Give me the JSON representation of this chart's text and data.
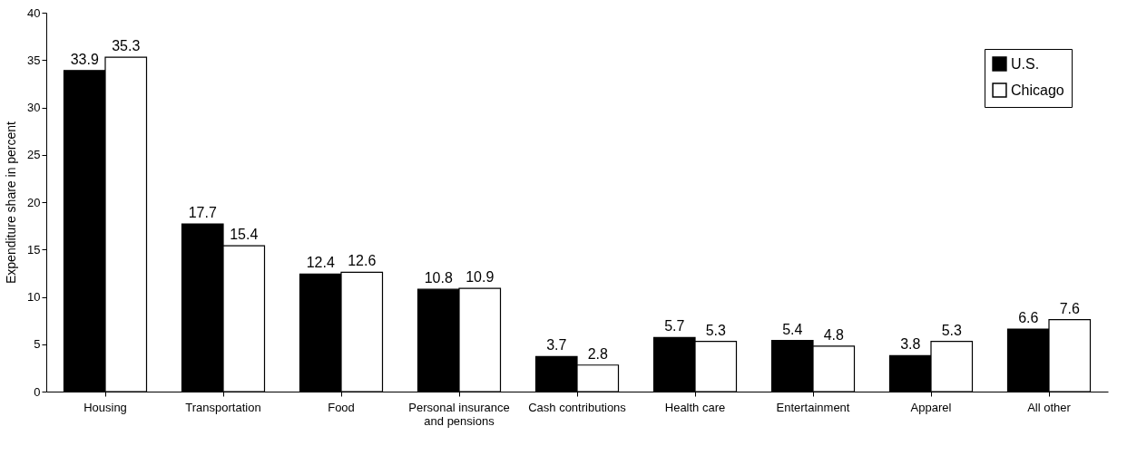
{
  "chart_data": {
    "type": "bar",
    "ylabel": "Expenditure share in percent",
    "categories": [
      "Housing",
      "Transportation",
      "Food",
      "Personal insurance and pensions",
      "Cash contributions",
      "Health care",
      "Entertainment",
      "Apparel",
      "All other"
    ],
    "series": [
      {
        "name": "U.S.",
        "color": "#000000",
        "values": [
          33.9,
          17.7,
          12.4,
          10.8,
          3.7,
          5.7,
          5.4,
          3.8,
          6.6
        ]
      },
      {
        "name": "Chicago",
        "color": "#ffffff",
        "values": [
          35.3,
          15.4,
          12.6,
          10.9,
          2.8,
          5.3,
          4.8,
          5.3,
          7.6
        ]
      }
    ],
    "ylim": [
      0,
      40
    ],
    "yticks": [
      0,
      5,
      10,
      15,
      20,
      25,
      30,
      35,
      40
    ],
    "grid": false,
    "legend": "top right",
    "data_labels": true
  }
}
